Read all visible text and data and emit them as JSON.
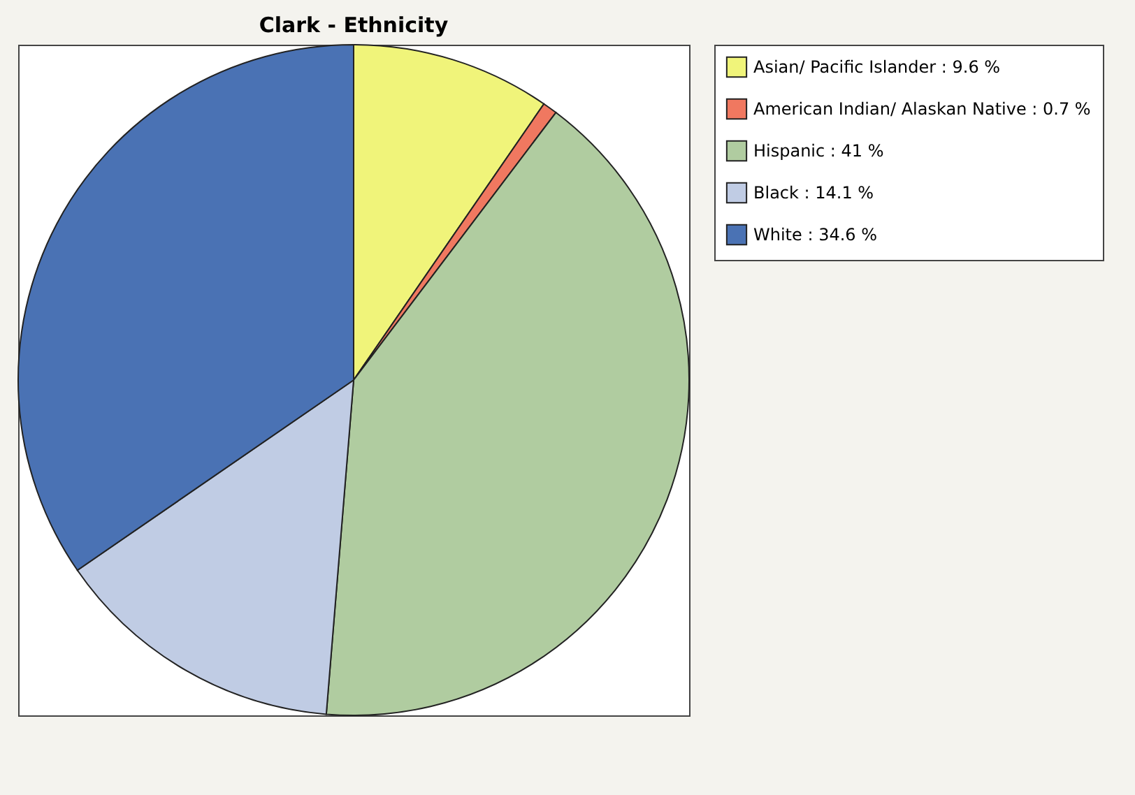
{
  "chart_data": {
    "type": "pie",
    "title": "Clark - Ethnicity",
    "categories": [
      "Asian/ Pacific Islander : 9.6 %",
      "American Indian/ Alaskan Native : 0.7 %",
      "Hispanic : 41 %",
      "Black : 14.1 %",
      "White : 34.6 %"
    ],
    "values": [
      9.6,
      0.7,
      41,
      14.1,
      34.6
    ],
    "colors": [
      "#f0f47a",
      "#f07860",
      "#b0cca0",
      "#c0cce4",
      "#4a72b4"
    ],
    "legend": "top right"
  }
}
